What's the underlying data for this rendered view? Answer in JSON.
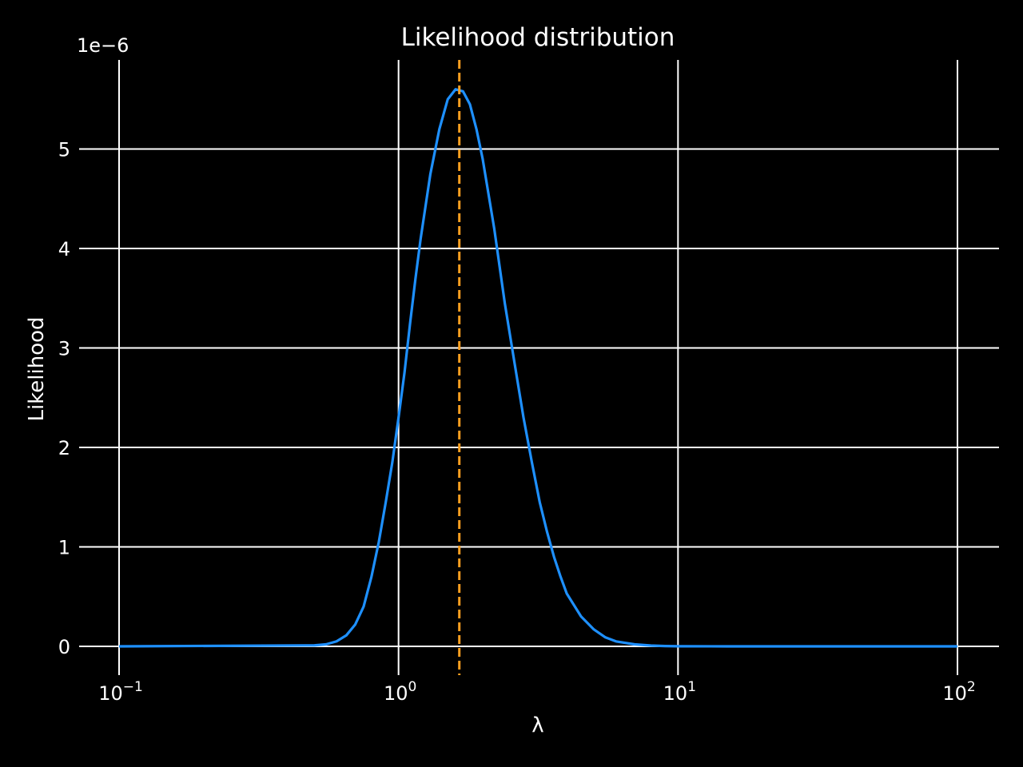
{
  "chart_data": {
    "type": "line",
    "title": "Likelihood distribution",
    "xlabel": "λ",
    "ylabel": "Likelihood",
    "y_offset_label": "1e−6",
    "x_scale": "log",
    "xlim": [
      0.1,
      100
    ],
    "ylim": [
      -3e-07,
      5.9e-06
    ],
    "x_ticks": [
      {
        "value": 0.1,
        "base": "10",
        "exp": "−1"
      },
      {
        "value": 1,
        "base": "10",
        "exp": "0"
      },
      {
        "value": 10,
        "base": "10",
        "exp": "1"
      },
      {
        "value": 100,
        "base": "10",
        "exp": "2"
      }
    ],
    "y_ticks": [
      {
        "value": 0,
        "label": "0"
      },
      {
        "value": 1e-06,
        "label": "1"
      },
      {
        "value": 2e-06,
        "label": "2"
      },
      {
        "value": 3e-06,
        "label": "3"
      },
      {
        "value": 4e-06,
        "label": "4"
      },
      {
        "value": 5e-06,
        "label": "5"
      }
    ],
    "grid": true,
    "series": [
      {
        "color": "#1e90ff",
        "x": [
          0.1,
          0.5,
          0.55,
          0.6,
          0.65,
          0.7,
          0.75,
          0.8,
          0.85,
          0.9,
          0.95,
          1.0,
          1.05,
          1.1,
          1.15,
          1.2,
          1.3,
          1.4,
          1.5,
          1.6,
          1.7,
          1.8,
          1.9,
          2.0,
          2.2,
          2.4,
          2.6,
          2.8,
          3.0,
          3.2,
          3.4,
          3.6,
          3.8,
          4.0,
          4.5,
          5.0,
          5.5,
          6.0,
          7.0,
          8.0,
          9.0,
          10.0,
          15.0,
          100.0
        ],
        "y": [
          0,
          1e-08,
          2e-08,
          5e-08,
          1.1e-07,
          2.2e-07,
          4e-07,
          7e-07,
          1.05e-06,
          1.45e-06,
          1.85e-06,
          2.3e-06,
          2.75e-06,
          3.25e-06,
          3.7e-06,
          4.1e-06,
          4.75e-06,
          5.2e-06,
          5.5e-06,
          5.6e-06,
          5.58e-06,
          5.45e-06,
          5.2e-06,
          4.9e-06,
          4.2e-06,
          3.45e-06,
          2.85e-06,
          2.3e-06,
          1.85e-06,
          1.45e-06,
          1.15e-06,
          9e-07,
          7e-07,
          5.3e-07,
          3e-07,
          1.7e-07,
          9e-08,
          5e-08,
          2e-08,
          8e-09,
          3e-09,
          1e-09,
          0,
          0
        ]
      }
    ],
    "reference_line": {
      "x": 1.65,
      "color": "#ffa020",
      "style": "dashed"
    }
  }
}
